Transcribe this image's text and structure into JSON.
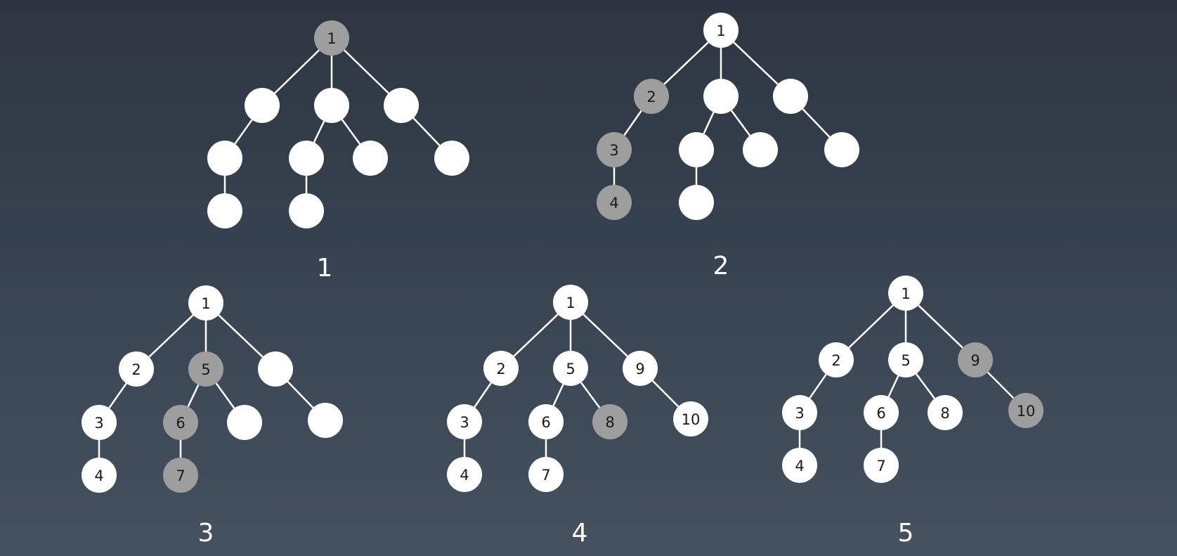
{
  "colors": {
    "visited": "#9e9e9e",
    "unvisited": "#ffffff",
    "edge": "#ffffff",
    "label": "#1a1a1a",
    "caption": "#ffffff"
  },
  "trees": [
    {
      "caption": "1",
      "nodes": [
        {
          "id": "r",
          "label": "1",
          "visited": true
        },
        {
          "id": "a",
          "label": "",
          "visited": false
        },
        {
          "id": "b",
          "label": "",
          "visited": false
        },
        {
          "id": "c",
          "label": "",
          "visited": false
        },
        {
          "id": "a1",
          "label": "",
          "visited": false
        },
        {
          "id": "b1",
          "label": "",
          "visited": false
        },
        {
          "id": "b2",
          "label": "",
          "visited": false
        },
        {
          "id": "c1",
          "label": "",
          "visited": false
        },
        {
          "id": "a1a",
          "label": "",
          "visited": false
        },
        {
          "id": "b1a",
          "label": "",
          "visited": false
        }
      ]
    },
    {
      "caption": "2",
      "nodes": [
        {
          "id": "r",
          "label": "1",
          "visited": false
        },
        {
          "id": "a",
          "label": "2",
          "visited": true
        },
        {
          "id": "b",
          "label": "",
          "visited": false
        },
        {
          "id": "c",
          "label": "",
          "visited": false
        },
        {
          "id": "a1",
          "label": "3",
          "visited": true
        },
        {
          "id": "b1",
          "label": "",
          "visited": false
        },
        {
          "id": "b2",
          "label": "",
          "visited": false
        },
        {
          "id": "c1",
          "label": "",
          "visited": false
        },
        {
          "id": "a1a",
          "label": "4",
          "visited": true
        },
        {
          "id": "b1a",
          "label": "",
          "visited": false
        }
      ]
    },
    {
      "caption": "3",
      "nodes": [
        {
          "id": "r",
          "label": "1",
          "visited": false
        },
        {
          "id": "a",
          "label": "2",
          "visited": false
        },
        {
          "id": "b",
          "label": "5",
          "visited": true
        },
        {
          "id": "c",
          "label": "",
          "visited": false
        },
        {
          "id": "a1",
          "label": "3",
          "visited": false
        },
        {
          "id": "b1",
          "label": "6",
          "visited": true
        },
        {
          "id": "b2",
          "label": "",
          "visited": false
        },
        {
          "id": "c1",
          "label": "",
          "visited": false
        },
        {
          "id": "a1a",
          "label": "4",
          "visited": false
        },
        {
          "id": "b1a",
          "label": "7",
          "visited": true
        }
      ]
    },
    {
      "caption": "4",
      "nodes": [
        {
          "id": "r",
          "label": "1",
          "visited": false
        },
        {
          "id": "a",
          "label": "2",
          "visited": false
        },
        {
          "id": "b",
          "label": "5",
          "visited": false
        },
        {
          "id": "c",
          "label": "9",
          "visited": false
        },
        {
          "id": "a1",
          "label": "3",
          "visited": false
        },
        {
          "id": "b1",
          "label": "6",
          "visited": false
        },
        {
          "id": "b2",
          "label": "8",
          "visited": true
        },
        {
          "id": "c1",
          "label": "10",
          "visited": false
        },
        {
          "id": "a1a",
          "label": "4",
          "visited": false
        },
        {
          "id": "b1a",
          "label": "7",
          "visited": false
        }
      ]
    },
    {
      "caption": "5",
      "nodes": [
        {
          "id": "r",
          "label": "1",
          "visited": false
        },
        {
          "id": "a",
          "label": "2",
          "visited": false
        },
        {
          "id": "b",
          "label": "5",
          "visited": false
        },
        {
          "id": "c",
          "label": "9",
          "visited": true
        },
        {
          "id": "a1",
          "label": "3",
          "visited": false
        },
        {
          "id": "b1",
          "label": "6",
          "visited": false
        },
        {
          "id": "b2",
          "label": "8",
          "visited": false
        },
        {
          "id": "c1",
          "label": "10",
          "visited": true
        },
        {
          "id": "a1a",
          "label": "4",
          "visited": false
        },
        {
          "id": "b1a",
          "label": "7",
          "visited": false
        }
      ]
    }
  ]
}
